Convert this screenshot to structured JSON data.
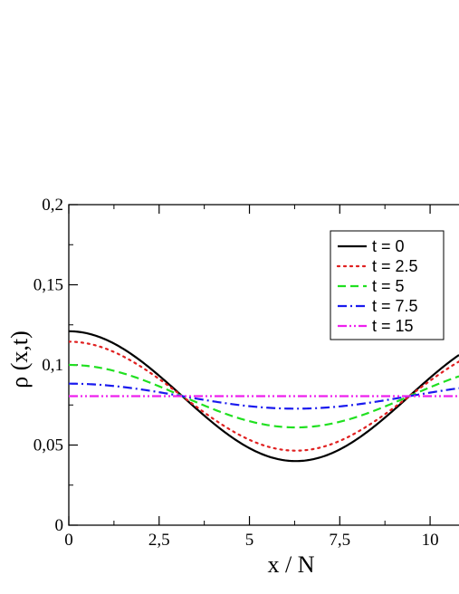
{
  "chart_data": {
    "type": "line",
    "title": "",
    "xlabel": "x / N",
    "ylabel": "ρ (x,t)",
    "xlim": [
      0,
      10.8
    ],
    "ylim": [
      0,
      0.2
    ],
    "x_ticks": [
      0,
      2.5,
      5,
      7.5,
      10
    ],
    "x_tick_labels": [
      "0",
      "2,5",
      "5",
      "7,5",
      "10"
    ],
    "y_ticks": [
      0,
      0.05,
      0.1,
      0.15,
      0.2
    ],
    "y_tick_labels": [
      "0",
      "0,05",
      "0,1",
      "0,15",
      "0,2"
    ],
    "grid": false,
    "legend_position": "top-right",
    "series": [
      {
        "name": "t = 0",
        "color": "#000000",
        "dash": "solid",
        "mean": 0.0805,
        "amplitude": 0.0405,
        "phase_x": 0,
        "period": 12.566,
        "values_at_x": {
          "0": 0.121,
          "3.14": 0.0805,
          "6.28": 0.04,
          "9.42": 0.0805
        }
      },
      {
        "name": "t = 2.5",
        "color": "#e02020",
        "dash": "dotted",
        "mean": 0.0805,
        "amplitude": 0.034,
        "phase_x": 0,
        "period": 12.566,
        "values_at_x": {
          "0": 0.1145,
          "3.14": 0.0805,
          "6.28": 0.0465,
          "9.42": 0.0805
        }
      },
      {
        "name": "t = 5",
        "color": "#20e020",
        "dash": "dashed",
        "mean": 0.0805,
        "amplitude": 0.0195,
        "phase_x": 0,
        "period": 12.566,
        "values_at_x": {
          "0": 0.1,
          "3.14": 0.0805,
          "6.28": 0.061,
          "9.42": 0.0805
        }
      },
      {
        "name": "t = 7.5",
        "color": "#1a1aee",
        "dash": "dashdot",
        "mean": 0.0805,
        "amplitude": 0.0078,
        "phase_x": 0,
        "period": 12.566,
        "values_at_x": {
          "0": 0.0883,
          "3.14": 0.0805,
          "6.28": 0.0727,
          "9.42": 0.0805
        }
      },
      {
        "name": "t = 15",
        "color": "#ee20ee",
        "dash": "dashdotdot",
        "mean": 0.0805,
        "amplitude": 0.0,
        "phase_x": 0,
        "period": 12.566,
        "values_at_x": {
          "0": 0.0805,
          "3.14": 0.0805,
          "6.28": 0.0805,
          "9.42": 0.0805
        }
      }
    ]
  }
}
